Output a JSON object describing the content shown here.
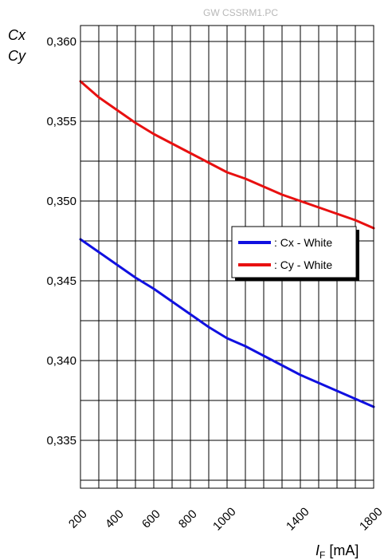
{
  "watermark": "GW CSSRM1.PC",
  "chart_data": {
    "type": "line",
    "ylabel_line1": "Cx",
    "ylabel_line2": "Cy",
    "xlabel_main": "I",
    "xlabel_sub": "F",
    "xlabel_unit": "[mA]",
    "xlim": [
      200,
      1800
    ],
    "ylim": [
      0.332,
      0.361
    ],
    "grid": true,
    "legend_position": "right-middle",
    "x_tick_values": [
      200,
      400,
      600,
      800,
      1000,
      1400,
      1800
    ],
    "x_tick_labels": [
      "200",
      "400",
      "600",
      "800",
      "1000",
      "1400",
      "1800"
    ],
    "y_tick_values": [
      0.335,
      0.34,
      0.345,
      0.35,
      0.355,
      0.36
    ],
    "y_tick_labels": [
      "0,335",
      "0,340",
      "0,345",
      "0,350",
      "0,355",
      "0,360"
    ],
    "x": [
      200,
      300,
      400,
      500,
      600,
      700,
      800,
      900,
      1000,
      1100,
      1200,
      1300,
      1400,
      1500,
      1600,
      1700,
      1800
    ],
    "series": [
      {
        "name": ": Cx - White",
        "color": "#1010e0",
        "values": [
          0.3476,
          0.3468,
          0.346,
          0.3452,
          0.3445,
          0.3437,
          0.3429,
          0.3421,
          0.3414,
          0.3409,
          0.3403,
          0.3397,
          0.3391,
          0.3386,
          0.3381,
          0.3376,
          0.3371
        ]
      },
      {
        "name": ": Cy - White",
        "color": "#e81010",
        "values": [
          0.3575,
          0.3565,
          0.3557,
          0.3549,
          0.3542,
          0.3536,
          0.353,
          0.3524,
          0.3518,
          0.3514,
          0.3509,
          0.3504,
          0.35,
          0.3496,
          0.3492,
          0.3488,
          0.3483
        ]
      }
    ]
  }
}
